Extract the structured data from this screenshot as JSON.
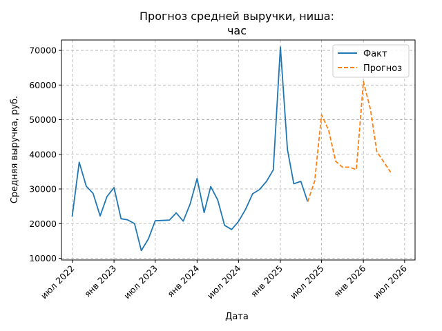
{
  "chart_data": {
    "type": "line",
    "title": [
      "Прогноз средней выручки, ниша:",
      "час"
    ],
    "xlabel": "Дата",
    "ylabel": "Средняя выручка, руб.",
    "ylim": [
      9500,
      73000
    ],
    "xlim": [
      "2022-05-15",
      "2026-08-16"
    ],
    "grid": true,
    "legend_position": "top-right",
    "y_ticks": [
      10000,
      20000,
      30000,
      40000,
      50000,
      60000,
      70000
    ],
    "x_ticks": [
      {
        "date": "2022-07-01",
        "label": "июл 2022"
      },
      {
        "date": "2023-01-01",
        "label": "янв 2023"
      },
      {
        "date": "2023-07-01",
        "label": "июл 2023"
      },
      {
        "date": "2024-01-01",
        "label": "янв 2024"
      },
      {
        "date": "2024-07-01",
        "label": "июл 2024"
      },
      {
        "date": "2025-01-01",
        "label": "янв 2025"
      },
      {
        "date": "2025-07-01",
        "label": "июл 2025"
      },
      {
        "date": "2026-01-01",
        "label": "янв 2026"
      },
      {
        "date": "2026-07-01",
        "label": "июл 2026"
      }
    ],
    "series": [
      {
        "name": "Факт",
        "color": "#1f77b4",
        "style": "solid",
        "x": [
          "2022-07-01",
          "2022-08-01",
          "2022-09-01",
          "2022-10-01",
          "2022-11-01",
          "2022-12-01",
          "2023-01-01",
          "2023-02-01",
          "2023-03-01",
          "2023-04-01",
          "2023-05-01",
          "2023-06-01",
          "2023-07-01",
          "2023-08-01",
          "2023-09-01",
          "2023-10-01",
          "2023-11-01",
          "2023-12-01",
          "2024-01-01",
          "2024-02-01",
          "2024-03-01",
          "2024-04-01",
          "2024-05-01",
          "2024-06-01",
          "2024-07-01",
          "2024-08-01",
          "2024-09-01",
          "2024-10-01",
          "2024-11-01",
          "2024-12-01",
          "2025-01-01",
          "2025-02-01",
          "2025-03-01",
          "2025-04-01",
          "2025-05-01"
        ],
        "values": [
          22000,
          37700,
          30800,
          28700,
          22200,
          27800,
          30400,
          21400,
          21100,
          20000,
          12200,
          15600,
          20800,
          20900,
          21000,
          23100,
          20700,
          25600,
          33000,
          23200,
          30700,
          26800,
          19500,
          18300,
          20600,
          24100,
          28600,
          29800,
          32200,
          35500,
          71000,
          41400,
          31500,
          32200,
          26300
        ]
      },
      {
        "name": "Прогноз",
        "color": "#ff7f0e",
        "style": "dashed",
        "x": [
          "2025-05-01",
          "2025-06-01",
          "2025-07-01",
          "2025-08-01",
          "2025-09-01",
          "2025-10-01",
          "2025-11-01",
          "2025-12-01",
          "2026-01-01",
          "2026-02-01",
          "2026-03-01",
          "2026-04-01",
          "2026-05-01"
        ],
        "values": [
          26300,
          32300,
          51400,
          47000,
          38000,
          36300,
          36300,
          35600,
          61000,
          53000,
          40800,
          37700,
          34800
        ]
      }
    ]
  }
}
